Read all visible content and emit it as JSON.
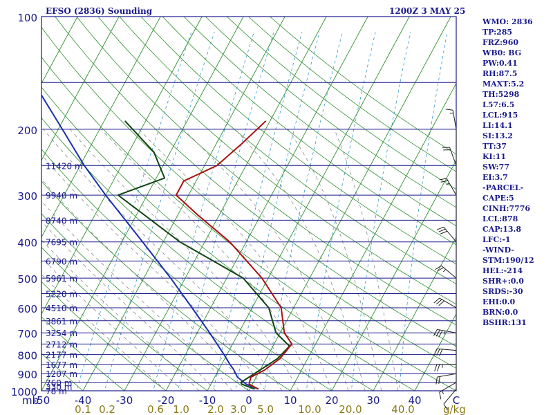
{
  "header": {
    "station": "EFSO (2836) Sounding",
    "datetime": "1200Z  3 MAY 25"
  },
  "indices": [
    "WMO: 2836",
    "TP:285",
    "FRZ:960",
    "WB0: BG",
    "PW:0.41",
    "RH:87.5",
    "MAXT:5.2",
    "TH:5298",
    "L57:6.5",
    "LCL:915",
    "LI:14.1",
    "SI:13.2",
    "TT:37",
    "KI:11",
    "SW:77",
    "EI:3.7",
    "-PARCEL-",
    "CAPE:5",
    "CINH:7776",
    "LCL:878",
    "CAP:13.8",
    "LFC:-1",
    "-WIND-",
    "STM:190/12",
    "HEL:-214",
    "SHR+:0.0",
    "SRDS:-30",
    "EHI:0.0",
    "BRN:0.0",
    "BSHR:131"
  ],
  "colors": {
    "frame": "#1a1a8c",
    "isobar": "#1a1a8c",
    "isotherm": "#2f8f2f",
    "dry_adiabat": "#2f8f2f",
    "moist_adiabat": "#8a8a8a",
    "mixing_ratio": "#3399cc",
    "temperature": "#aa1111",
    "dewpoint": "#114411",
    "parcel": "#1a2fb0",
    "axis_text": "#1a1a8c",
    "mixing_text": "#8a7a1a"
  },
  "chart_data": {
    "type": "skew-t",
    "title": "EFSO (2836) Sounding",
    "yscale": "log",
    "ylim": [
      1000,
      100
    ],
    "xlim": [
      -50,
      50
    ],
    "pressure_ticks": [
      "100",
      "200",
      "300",
      "400",
      "500",
      "600",
      "700",
      "800",
      "900",
      "1000"
    ],
    "temperature_ticks": [
      "-50",
      "-40",
      "-30",
      "-20",
      "-10",
      "0",
      "10",
      "20",
      "30",
      "40",
      "C"
    ],
    "pressure_unit_label": "mb",
    "mixing_ratio_ticks": [
      "0.1",
      "0.2",
      "0.6",
      "1.0",
      "2.0",
      "3.0",
      "5.0",
      "10.0",
      "20.0",
      "40.0"
    ],
    "mixing_ratio_unit": "g/kg",
    "heights": [
      {
        "p": 1000,
        "label": "78 m"
      },
      {
        "p": 975,
        "label": "330 m"
      },
      {
        "p": 950,
        "label": "760 m"
      },
      {
        "p": 900,
        "label": "1207 m"
      },
      {
        "p": 850,
        "label": "1677 m"
      },
      {
        "p": 800,
        "label": "2177 m"
      },
      {
        "p": 750,
        "label": "2712 m"
      },
      {
        "p": 700,
        "label": "3254 m"
      },
      {
        "p": 650,
        "label": "3861 m"
      },
      {
        "p": 600,
        "label": "4510 m"
      },
      {
        "p": 550,
        "label": "5220 m"
      },
      {
        "p": 500,
        "label": "5961 m"
      },
      {
        "p": 450,
        "label": "6790 m"
      },
      {
        "p": 400,
        "label": "7695 m"
      },
      {
        "p": 350,
        "label": "8740 m"
      },
      {
        "p": 300,
        "label": "9940 m"
      },
      {
        "p": 250,
        "label": "11420 m"
      }
    ],
    "series": [
      {
        "name": "temperature",
        "points": [
          [
            990,
            2.1
          ],
          [
            960,
            -0.8
          ],
          [
            920,
            -1.3
          ],
          [
            880,
            1.1
          ],
          [
            820,
            3.3
          ],
          [
            750,
            4.3
          ],
          [
            700,
            1.0
          ],
          [
            600,
            -3.0
          ],
          [
            500,
            -11.5
          ],
          [
            400,
            -24.0
          ],
          [
            340,
            -35.0
          ],
          [
            300,
            -43.0
          ],
          [
            275,
            -43.0
          ],
          [
            250,
            -37.0
          ],
          [
            220,
            -34.0
          ],
          [
            190,
            -31.0
          ]
        ]
      },
      {
        "name": "dewpoint",
        "points": [
          [
            990,
            1.2
          ],
          [
            960,
            -2.6
          ],
          [
            950,
            -3.0
          ],
          [
            860,
            0.9
          ],
          [
            820,
            2.7
          ],
          [
            760,
            4.0
          ],
          [
            700,
            -1.0
          ],
          [
            600,
            -6.0
          ],
          [
            500,
            -16.0
          ],
          [
            400,
            -36.0
          ],
          [
            300,
            -57.0
          ],
          [
            270,
            -48.0
          ],
          [
            230,
            -54.0
          ],
          [
            190,
            -65.0
          ]
        ]
      },
      {
        "name": "parcel",
        "points": [
          [
            990,
            2.1
          ],
          [
            960,
            -1.5
          ],
          [
            920,
            -4.5
          ],
          [
            878,
            -6.4
          ],
          [
            850,
            -8.0
          ],
          [
            800,
            -10.7
          ],
          [
            700,
            -17.0
          ],
          [
            600,
            -24.5
          ],
          [
            500,
            -33.5
          ],
          [
            400,
            -45.0
          ],
          [
            300,
            -60.0
          ],
          [
            250,
            -69.0
          ],
          [
            200,
            -79.0
          ],
          [
            150,
            -92.0
          ],
          [
            130,
            -98.0
          ]
        ]
      }
    ],
    "winds": [
      {
        "p": 990,
        "dir": 220,
        "spd": 10
      },
      {
        "p": 950,
        "dir": 240,
        "spd": 15
      },
      {
        "p": 900,
        "dir": 260,
        "spd": 20
      },
      {
        "p": 850,
        "dir": 270,
        "spd": 25
      },
      {
        "p": 780,
        "dir": 275,
        "spd": 30
      },
      {
        "p": 700,
        "dir": 280,
        "spd": 35
      },
      {
        "p": 600,
        "dir": 300,
        "spd": 30
      },
      {
        "p": 500,
        "dir": 310,
        "spd": 25
      },
      {
        "p": 400,
        "dir": 320,
        "spd": 30
      },
      {
        "p": 300,
        "dir": 330,
        "spd": 25
      },
      {
        "p": 250,
        "dir": 340,
        "spd": 20
      },
      {
        "p": 200,
        "dir": 350,
        "spd": 15
      }
    ]
  }
}
